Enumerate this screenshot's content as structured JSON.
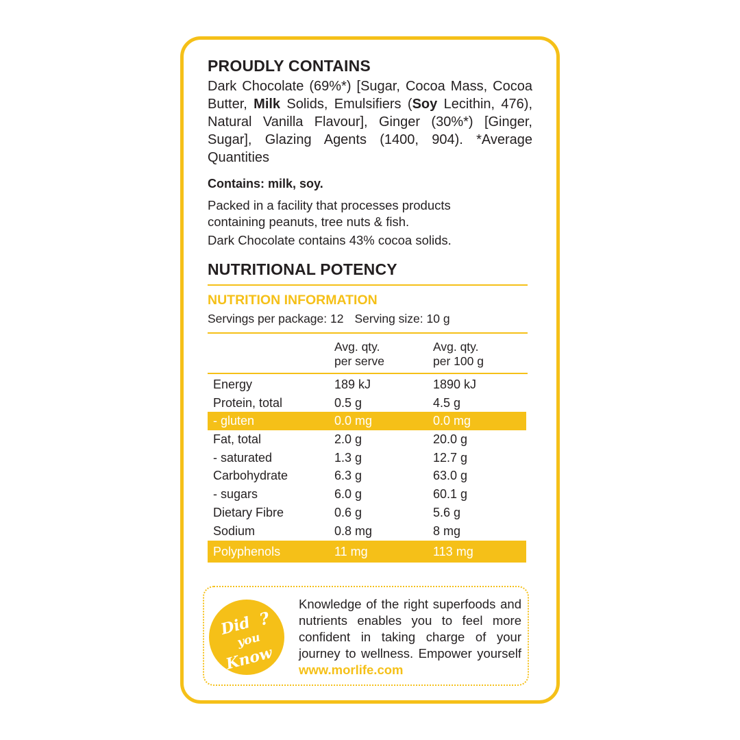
{
  "contains": {
    "title": "PROUDLY CONTAINS",
    "ingredients_parts": [
      "Dark Chocolate (69%*) [Sugar, Cocoa Mass, Cocoa Butter, ",
      "Milk",
      " Solids, Emulsifiers (",
      "Soy",
      " Lecithin, 476), Natural Vanilla Flavour], Ginger (30%*) [Ginger, Sugar], Glazing Agents (1400, 904). *Average Quantities"
    ],
    "allergens": "Contains: milk, soy.",
    "facility": "Packed in a facility that processes products containing peanuts, tree nuts & fish.",
    "cocoa": "Dark Chocolate contains 43% cocoa solids."
  },
  "potency": {
    "title": "NUTRITIONAL POTENCY",
    "subtitle": "NUTRITION INFORMATION",
    "servings": "Servings per package: 12",
    "serving_size": "Serving size: 10 g"
  },
  "table": {
    "headers": [
      "",
      "Avg. qty.\nper serve",
      "Avg. qty.\nper 100 g"
    ],
    "rows": [
      [
        "Energy",
        "189 kJ",
        "1890 kJ"
      ],
      [
        "Protein, total",
        "0.5 g",
        "4.5 g"
      ],
      [
        "- gluten",
        "0.0 mg",
        "0.0 mg"
      ],
      [
        "Fat, total",
        "2.0 g",
        "20.0 g"
      ],
      [
        "- saturated",
        "1.3 g",
        "12.7 g"
      ],
      [
        "Carbohydrate",
        "6.3 g",
        "63.0 g"
      ],
      [
        "- sugars",
        "6.0 g",
        "60.1 g"
      ],
      [
        "Dietary Fibre",
        "0.6 g",
        "5.6 g"
      ],
      [
        "Sodium",
        "0.8 mg",
        "8 mg"
      ],
      [
        "Polyphenols",
        "11 mg",
        "113 mg"
      ]
    ],
    "highlighted_rows": [
      "- gluten",
      "Polyphenols"
    ]
  },
  "did_you_know": {
    "badge": "Did you Know?",
    "text": "Knowledge of the right superfoods and nutrients enables you to feel more confident in taking charge of your journey to wellness. Empower yourself ",
    "link": "www.morlife.com"
  },
  "colors": {
    "accent": "#f5c018",
    "text": "#231f20"
  }
}
